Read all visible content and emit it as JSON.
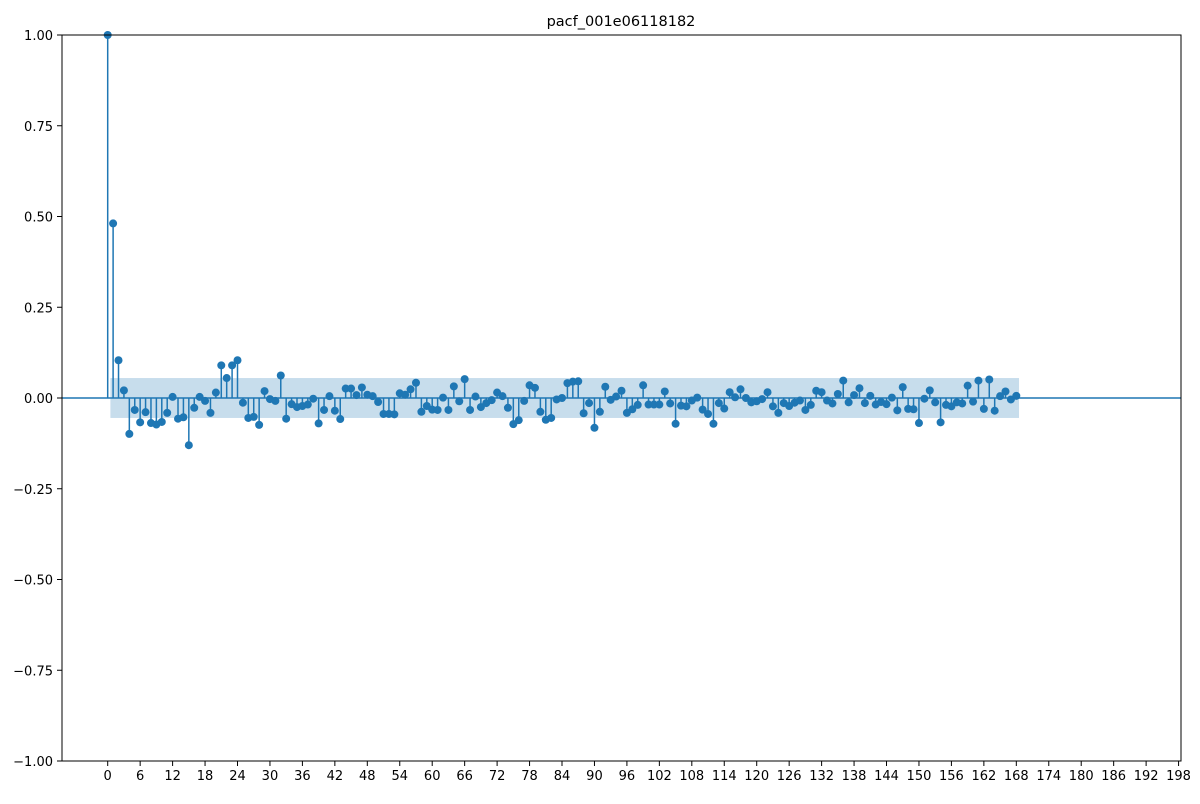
{
  "chart_data": {
    "type": "stem",
    "title": "pacf_001e06118182",
    "xlabel": "",
    "ylabel": "",
    "xlim": [
      -8.45,
      198.45
    ],
    "ylim": [
      -1.0,
      1.0
    ],
    "x_ticks": [
      0,
      6,
      12,
      18,
      24,
      30,
      36,
      42,
      48,
      54,
      60,
      66,
      72,
      78,
      84,
      90,
      96,
      102,
      108,
      114,
      120,
      126,
      132,
      138,
      144,
      150,
      156,
      162,
      168,
      174,
      180,
      186,
      192,
      198
    ],
    "y_ticks": [
      1.0,
      0.75,
      0.5,
      0.25,
      0.0,
      -0.25,
      -0.5,
      -0.75,
      -1.0
    ],
    "y_tick_labels": [
      "1.00",
      "0.75",
      "0.50",
      "0.25",
      "0.00",
      "−0.25",
      "−0.50",
      "−0.75",
      "−1.00"
    ],
    "confidence_band": {
      "x_range": [
        0.5,
        168.5
      ],
      "upper": 0.055,
      "lower": -0.055
    },
    "lags": [
      0,
      1,
      2,
      3,
      4,
      5,
      6,
      7,
      8,
      9,
      10,
      11,
      12,
      13,
      14,
      15,
      16,
      17,
      18,
      19,
      20,
      21,
      22,
      23,
      24,
      25,
      26,
      27,
      28,
      29,
      30,
      31,
      32,
      33,
      34,
      35,
      36,
      37,
      38,
      39,
      40,
      41,
      42,
      43,
      44,
      45,
      46,
      47,
      48,
      49,
      50,
      51,
      52,
      53,
      54,
      55,
      56,
      57,
      58,
      59,
      60,
      61,
      62,
      63,
      64,
      65,
      66,
      67,
      68,
      69,
      70,
      71,
      72,
      73,
      74,
      75,
      76,
      77,
      78,
      79,
      80,
      81,
      82,
      83,
      84,
      85,
      86,
      87,
      88,
      89,
      90,
      91,
      92,
      93,
      94,
      95,
      96,
      97,
      98,
      99,
      100,
      101,
      102,
      103,
      104,
      105,
      106,
      107,
      108,
      109,
      110,
      111,
      112,
      113,
      114,
      115,
      116,
      117,
      118,
      119,
      120,
      121,
      122,
      123,
      124,
      125,
      126,
      127,
      128,
      129,
      130,
      131,
      132,
      133,
      134,
      135,
      136,
      137,
      138,
      139,
      140,
      141,
      142,
      143,
      144,
      145,
      146,
      147,
      148,
      149,
      150,
      151,
      152,
      153,
      154,
      155,
      156,
      157,
      158,
      159,
      160,
      161,
      162,
      163,
      164,
      165,
      166,
      167,
      168
    ],
    "values": [
      1.0,
      0.481,
      0.104,
      0.021,
      -0.099,
      -0.033,
      -0.067,
      -0.039,
      -0.069,
      -0.073,
      -0.066,
      -0.041,
      0.003,
      -0.057,
      -0.053,
      -0.13,
      -0.027,
      0.003,
      -0.008,
      -0.041,
      0.015,
      0.09,
      0.055,
      0.09,
      0.104,
      -0.013,
      -0.055,
      -0.052,
      -0.074,
      0.019,
      -0.003,
      -0.008,
      0.062,
      -0.057,
      -0.017,
      -0.025,
      -0.022,
      -0.018,
      -0.002,
      -0.07,
      -0.033,
      0.005,
      -0.035,
      -0.058,
      0.026,
      0.026,
      0.008,
      0.029,
      0.009,
      0.005,
      -0.011,
      -0.044,
      -0.044,
      -0.045,
      0.013,
      0.009,
      0.024,
      0.042,
      -0.038,
      -0.022,
      -0.032,
      -0.033,
      0.001,
      -0.033,
      0.032,
      -0.009,
      0.052,
      -0.033,
      0.004,
      -0.025,
      -0.014,
      -0.006,
      0.015,
      0.005,
      -0.027,
      -0.072,
      -0.061,
      -0.008,
      0.035,
      0.028,
      -0.038,
      -0.06,
      -0.055,
      -0.004,
      0.0,
      0.041,
      0.045,
      0.046,
      -0.042,
      -0.014,
      -0.082,
      -0.038,
      0.031,
      -0.005,
      0.004,
      0.02,
      -0.041,
      -0.031,
      -0.019,
      0.035,
      -0.018,
      -0.018,
      -0.018,
      0.018,
      -0.015,
      -0.071,
      -0.021,
      -0.023,
      -0.007,
      0.001,
      -0.032,
      -0.044,
      -0.071,
      -0.014,
      -0.029,
      0.016,
      0.002,
      0.024,
      0.0,
      -0.012,
      -0.009,
      -0.003,
      0.016,
      -0.023,
      -0.041,
      -0.014,
      -0.022,
      -0.013,
      -0.007,
      -0.033,
      -0.019,
      0.02,
      0.016,
      -0.007,
      -0.015,
      0.011,
      0.048,
      -0.012,
      0.008,
      0.027,
      -0.014,
      0.006,
      -0.018,
      -0.011,
      -0.017,
      0.001,
      -0.034,
      0.03,
      -0.03,
      -0.031,
      -0.069,
      -0.002,
      0.021,
      -0.012,
      -0.067,
      -0.019,
      -0.023,
      -0.012,
      -0.015,
      0.034,
      -0.01,
      0.048,
      -0.03,
      0.051,
      -0.035,
      0.005,
      0.018,
      -0.004,
      0.006
    ],
    "colors": {
      "stem": "#1f77b4",
      "band": "#1f77b4",
      "axis": "#000000"
    },
    "grid": false,
    "legend": "none"
  }
}
